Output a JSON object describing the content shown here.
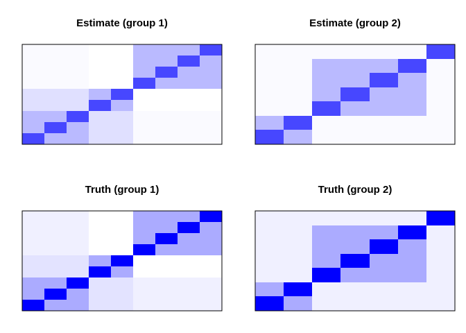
{
  "colors": {
    "background": "#ffffff",
    "frame": "#000000",
    "strong": "#0000ff",
    "light": "#e6e6ff"
  },
  "chart_data": [
    {
      "type": "heatmap",
      "title": "Estimate (group 1)",
      "color_scale": "intensity 0 = white, 1 = pure blue (#0000ff)",
      "n_rows": 9,
      "n_cols": 9,
      "row_order": "bottom-to-top",
      "blocks": [
        {
          "rows": [
            0,
            2
          ],
          "cols": [
            0,
            2
          ],
          "value": 0.27
        },
        {
          "rows": [
            3,
            4
          ],
          "cols": [
            0,
            2
          ],
          "value": 0.12
        },
        {
          "rows": [
            5,
            8
          ],
          "cols": [
            0,
            2
          ],
          "value": 0.02
        },
        {
          "rows": [
            0,
            2
          ],
          "cols": [
            3,
            4
          ],
          "value": 0.12
        },
        {
          "rows": [
            3,
            4
          ],
          "cols": [
            3,
            4
          ],
          "value": 0.27
        },
        {
          "rows": [
            5,
            8
          ],
          "cols": [
            3,
            4
          ],
          "value": 0.0
        },
        {
          "rows": [
            0,
            2
          ],
          "cols": [
            5,
            8
          ],
          "value": 0.02
        },
        {
          "rows": [
            3,
            4
          ],
          "cols": [
            5,
            8
          ],
          "value": 0.0
        },
        {
          "rows": [
            5,
            8
          ],
          "cols": [
            5,
            8
          ],
          "value": 0.27
        }
      ],
      "diagonal": [
        {
          "row": 0,
          "col": 0,
          "value": 0.72
        },
        {
          "row": 1,
          "col": 1,
          "value": 0.72
        },
        {
          "row": 2,
          "col": 2,
          "value": 0.72
        },
        {
          "row": 3,
          "col": 3,
          "value": 0.72
        },
        {
          "row": 4,
          "col": 4,
          "value": 0.72
        },
        {
          "row": 5,
          "col": 5,
          "value": 0.72
        },
        {
          "row": 6,
          "col": 6,
          "value": 0.72
        },
        {
          "row": 7,
          "col": 7,
          "value": 0.72
        },
        {
          "row": 8,
          "col": 8,
          "value": 0.72
        }
      ]
    },
    {
      "type": "heatmap",
      "title": "Estimate (group 2)",
      "color_scale": "intensity 0 = white, 1 = pure blue (#0000ff)",
      "n_rows": 7,
      "n_cols": 7,
      "row_order": "bottom-to-top",
      "blocks": [
        {
          "rows": [
            0,
            1
          ],
          "cols": [
            0,
            1
          ],
          "value": 0.27
        },
        {
          "rows": [
            2,
            5
          ],
          "cols": [
            0,
            1
          ],
          "value": 0.02
        },
        {
          "rows": [
            6,
            6
          ],
          "cols": [
            0,
            1
          ],
          "value": 0.02
        },
        {
          "rows": [
            0,
            1
          ],
          "cols": [
            2,
            5
          ],
          "value": 0.02
        },
        {
          "rows": [
            2,
            5
          ],
          "cols": [
            2,
            5
          ],
          "value": 0.27
        },
        {
          "rows": [
            6,
            6
          ],
          "cols": [
            2,
            5
          ],
          "value": 0.02
        },
        {
          "rows": [
            0,
            1
          ],
          "cols": [
            6,
            6
          ],
          "value": 0.02
        },
        {
          "rows": [
            2,
            5
          ],
          "cols": [
            6,
            6
          ],
          "value": 0.02
        },
        {
          "rows": [
            6,
            6
          ],
          "cols": [
            6,
            6
          ],
          "value": 0.27
        }
      ],
      "diagonal": [
        {
          "row": 0,
          "col": 0,
          "value": 0.72
        },
        {
          "row": 1,
          "col": 1,
          "value": 0.72
        },
        {
          "row": 2,
          "col": 2,
          "value": 0.72
        },
        {
          "row": 3,
          "col": 3,
          "value": 0.72
        },
        {
          "row": 4,
          "col": 4,
          "value": 0.72
        },
        {
          "row": 5,
          "col": 5,
          "value": 0.72
        },
        {
          "row": 6,
          "col": 6,
          "value": 0.72
        }
      ]
    },
    {
      "type": "heatmap",
      "title": "Truth (group 1)",
      "color_scale": "intensity 0 = white, 1 = pure blue (#0000ff)",
      "n_rows": 9,
      "n_cols": 9,
      "row_order": "bottom-to-top",
      "blocks": [
        {
          "rows": [
            0,
            2
          ],
          "cols": [
            0,
            2
          ],
          "value": 0.33
        },
        {
          "rows": [
            3,
            4
          ],
          "cols": [
            0,
            2
          ],
          "value": 0.11
        },
        {
          "rows": [
            5,
            8
          ],
          "cols": [
            0,
            2
          ],
          "value": 0.06
        },
        {
          "rows": [
            0,
            2
          ],
          "cols": [
            3,
            4
          ],
          "value": 0.11
        },
        {
          "rows": [
            3,
            4
          ],
          "cols": [
            3,
            4
          ],
          "value": 0.33
        },
        {
          "rows": [
            5,
            8
          ],
          "cols": [
            3,
            4
          ],
          "value": 0.0
        },
        {
          "rows": [
            0,
            2
          ],
          "cols": [
            5,
            8
          ],
          "value": 0.06
        },
        {
          "rows": [
            3,
            4
          ],
          "cols": [
            5,
            8
          ],
          "value": 0.0
        },
        {
          "rows": [
            5,
            8
          ],
          "cols": [
            5,
            8
          ],
          "value": 0.33
        }
      ],
      "diagonal": [
        {
          "row": 0,
          "col": 0,
          "value": 1.0
        },
        {
          "row": 1,
          "col": 1,
          "value": 1.0
        },
        {
          "row": 2,
          "col": 2,
          "value": 1.0
        },
        {
          "row": 3,
          "col": 3,
          "value": 1.0
        },
        {
          "row": 4,
          "col": 4,
          "value": 1.0
        },
        {
          "row": 5,
          "col": 5,
          "value": 1.0
        },
        {
          "row": 6,
          "col": 6,
          "value": 1.0
        },
        {
          "row": 7,
          "col": 7,
          "value": 1.0
        },
        {
          "row": 8,
          "col": 8,
          "value": 1.0
        }
      ]
    },
    {
      "type": "heatmap",
      "title": "Truth (group 2)",
      "color_scale": "intensity 0 = white, 1 = pure blue (#0000ff)",
      "n_rows": 7,
      "n_cols": 7,
      "row_order": "bottom-to-top",
      "blocks": [
        {
          "rows": [
            0,
            1
          ],
          "cols": [
            0,
            1
          ],
          "value": 0.33
        },
        {
          "rows": [
            2,
            5
          ],
          "cols": [
            0,
            1
          ],
          "value": 0.06
        },
        {
          "rows": [
            6,
            6
          ],
          "cols": [
            0,
            1
          ],
          "value": 0.06
        },
        {
          "rows": [
            0,
            1
          ],
          "cols": [
            2,
            5
          ],
          "value": 0.06
        },
        {
          "rows": [
            2,
            5
          ],
          "cols": [
            2,
            5
          ],
          "value": 0.33
        },
        {
          "rows": [
            6,
            6
          ],
          "cols": [
            2,
            5
          ],
          "value": 0.06
        },
        {
          "rows": [
            0,
            1
          ],
          "cols": [
            6,
            6
          ],
          "value": 0.06
        },
        {
          "rows": [
            2,
            5
          ],
          "cols": [
            6,
            6
          ],
          "value": 0.06
        },
        {
          "rows": [
            6,
            6
          ],
          "cols": [
            6,
            6
          ],
          "value": 0.33
        }
      ],
      "diagonal": [
        {
          "row": 0,
          "col": 0,
          "value": 1.0
        },
        {
          "row": 1,
          "col": 1,
          "value": 1.0
        },
        {
          "row": 2,
          "col": 2,
          "value": 1.0
        },
        {
          "row": 3,
          "col": 3,
          "value": 1.0
        },
        {
          "row": 4,
          "col": 4,
          "value": 1.0
        },
        {
          "row": 5,
          "col": 5,
          "value": 1.0
        },
        {
          "row": 6,
          "col": 6,
          "value": 1.0
        }
      ]
    }
  ]
}
